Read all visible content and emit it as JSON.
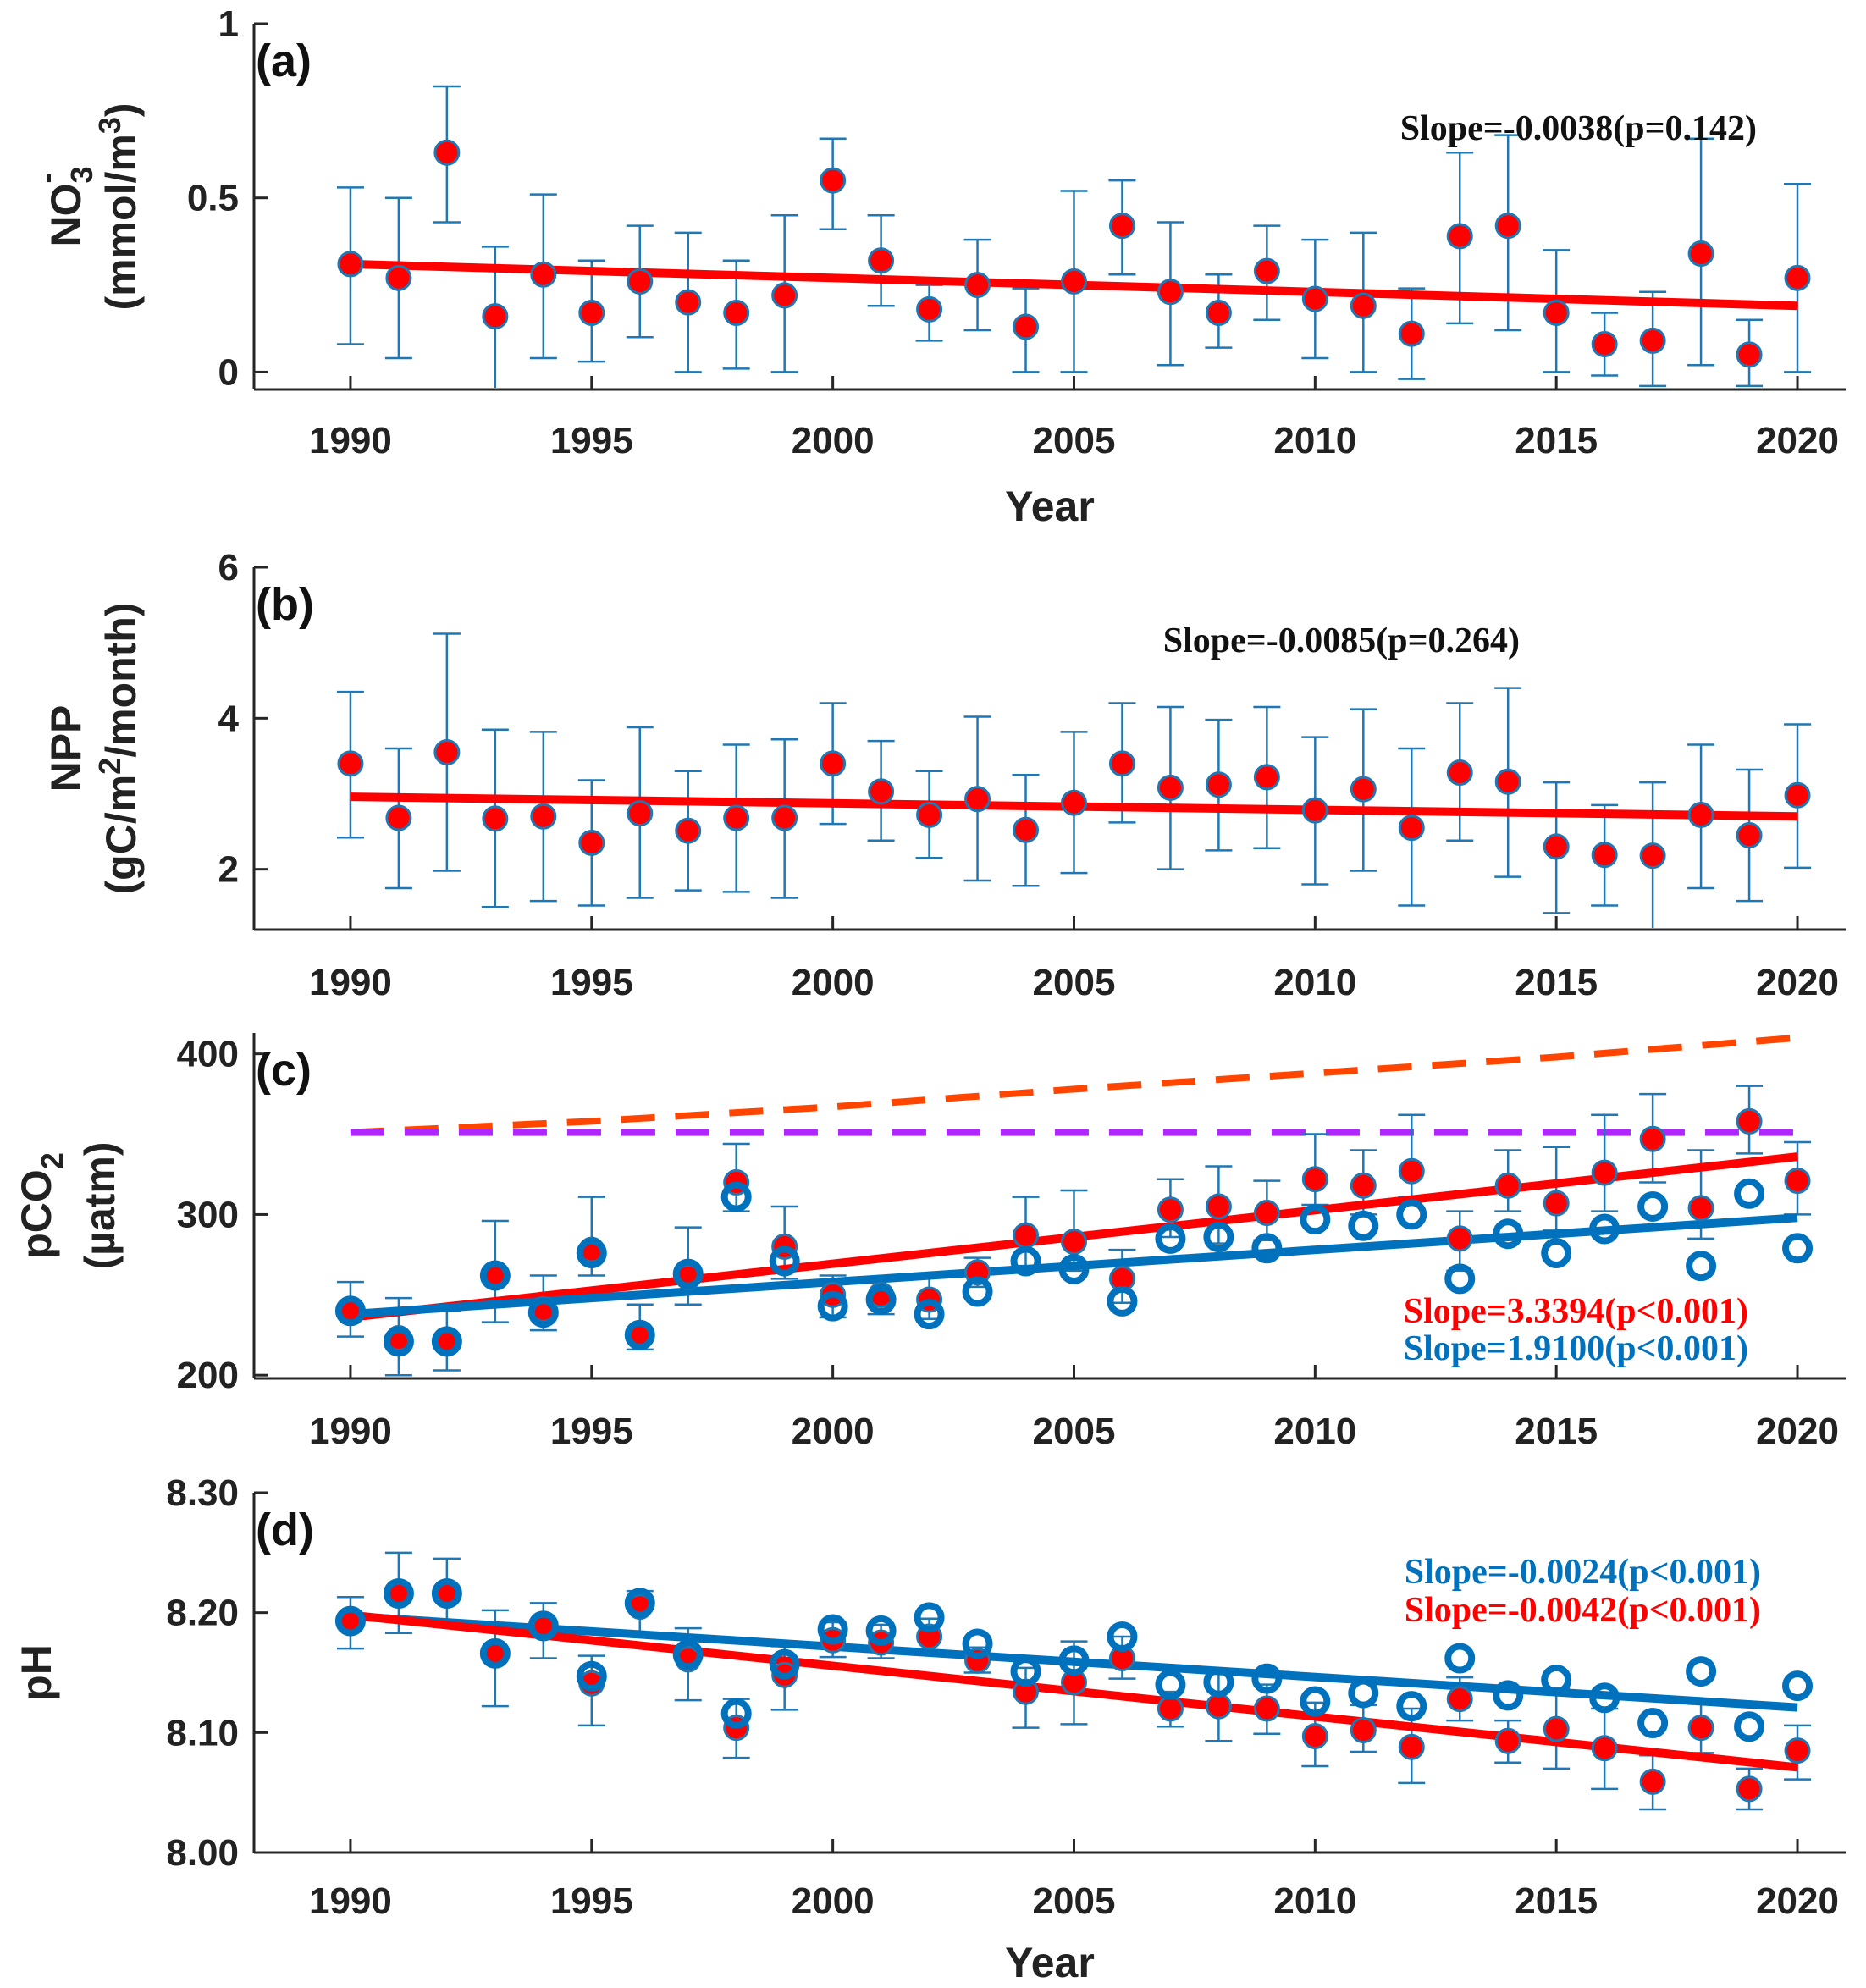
{
  "chart_data": [
    {
      "type": "scatter",
      "panel_label": "(a)",
      "ylabel_main": "NO",
      "ylabel_sub": "3",
      "ylabel_sup": "-",
      "ylabel_unit": "(mmol/m",
      "ylabel_unit_sup": "3",
      "ylabel_unit_end": ")",
      "xlabel": "Year",
      "xlim": [
        1988,
        2021
      ],
      "ylim": [
        -0.05,
        1.0
      ],
      "xticks": [
        "1990",
        "1995",
        "2000",
        "2005",
        "2010",
        "2015",
        "2020"
      ],
      "yticks": [
        "0",
        "0.5",
        "1"
      ],
      "ytick_values": [
        0,
        0.5,
        1
      ],
      "years": [
        1990,
        1991,
        1992,
        1993,
        1994,
        1995,
        1996,
        1997,
        1998,
        1999,
        2000,
        2001,
        2002,
        2003,
        2004,
        2005,
        2006,
        2007,
        2008,
        2009,
        2010,
        2011,
        2012,
        2013,
        2014,
        2015,
        2016,
        2017,
        2018,
        2019,
        2020
      ],
      "series": [
        {
          "name": "observed",
          "marker": "filled",
          "values": [
            0.31,
            0.27,
            0.63,
            0.16,
            0.28,
            0.17,
            0.26,
            0.2,
            0.17,
            0.22,
            0.55,
            0.32,
            0.18,
            0.25,
            0.13,
            0.26,
            0.42,
            0.23,
            0.17,
            0.29,
            0.21,
            0.19,
            0.11,
            0.39,
            0.42,
            0.17,
            0.08,
            0.09,
            0.34,
            0.05,
            0.27
          ],
          "err_low": [
            0.08,
            0.04,
            0.43,
            -0.05,
            0.04,
            0.03,
            0.1,
            0.0,
            0.01,
            0.0,
            0.41,
            0.19,
            0.09,
            0.12,
            0.0,
            0.0,
            0.28,
            0.02,
            0.07,
            0.15,
            0.04,
            0.0,
            -0.02,
            0.14,
            0.12,
            0.0,
            -0.01,
            -0.04,
            0.02,
            -0.04,
            0.0
          ],
          "err_high": [
            0.53,
            0.5,
            0.82,
            0.36,
            0.51,
            0.32,
            0.42,
            0.4,
            0.32,
            0.45,
            0.67,
            0.45,
            0.25,
            0.38,
            0.24,
            0.52,
            0.55,
            0.43,
            0.28,
            0.42,
            0.38,
            0.4,
            0.24,
            0.63,
            0.68,
            0.35,
            0.17,
            0.23,
            0.67,
            0.15,
            0.54
          ]
        }
      ],
      "trend_lines": [
        {
          "name": "trend",
          "color": "#ff0000",
          "style": "solid",
          "x": [
            1990,
            2020
          ],
          "y": [
            0.31,
            0.19
          ]
        }
      ],
      "annotations": [
        {
          "text": "Slope=-0.0038(p=0.142)",
          "color": "#111111"
        }
      ]
    },
    {
      "type": "scatter",
      "panel_label": "(b)",
      "ylabel_main": "NPP",
      "ylabel_unit": "(gC/m",
      "ylabel_unit_sup": "2",
      "ylabel_unit_end": "/month)",
      "xlabel": "",
      "xlim": [
        1988,
        2021
      ],
      "ylim": [
        1.2,
        6.0
      ],
      "xticks": [
        "1990",
        "1995",
        "2000",
        "2005",
        "2010",
        "2015",
        "2020"
      ],
      "yticks": [
        "2",
        "4",
        "6"
      ],
      "ytick_values": [
        2,
        4,
        6
      ],
      "years": [
        1990,
        1991,
        1992,
        1993,
        1994,
        1995,
        1996,
        1997,
        1998,
        1999,
        2000,
        2001,
        2002,
        2003,
        2004,
        2005,
        2006,
        2007,
        2008,
        2009,
        2010,
        2011,
        2012,
        2013,
        2014,
        2015,
        2016,
        2017,
        2018,
        2019,
        2020
      ],
      "series": [
        {
          "name": "observed",
          "marker": "filled",
          "values": [
            3.4,
            2.68,
            3.55,
            2.67,
            2.7,
            2.35,
            2.74,
            2.51,
            2.68,
            2.68,
            3.4,
            3.03,
            2.72,
            2.93,
            2.52,
            2.88,
            3.4,
            3.08,
            3.12,
            3.22,
            2.78,
            3.06,
            2.55,
            3.28,
            3.16,
            2.3,
            2.19,
            2.18,
            2.72,
            2.45,
            2.98
          ],
          "err_low": [
            2.42,
            1.75,
            1.98,
            1.5,
            1.58,
            1.52,
            1.62,
            1.72,
            1.7,
            1.62,
            2.6,
            2.38,
            2.15,
            1.85,
            1.78,
            1.95,
            2.62,
            2.0,
            2.25,
            2.28,
            1.8,
            1.98,
            1.52,
            2.38,
            1.9,
            1.42,
            1.52,
            1.2,
            1.75,
            1.58,
            2.02
          ],
          "err_high": [
            4.35,
            3.6,
            5.12,
            3.85,
            3.82,
            3.18,
            3.88,
            3.3,
            3.65,
            3.72,
            4.2,
            3.7,
            3.3,
            4.02,
            3.25,
            3.82,
            4.2,
            4.15,
            3.98,
            4.15,
            3.75,
            4.12,
            3.6,
            4.2,
            4.4,
            3.15,
            2.85,
            3.15,
            3.65,
            3.32,
            3.92
          ]
        }
      ],
      "trend_lines": [
        {
          "name": "trend",
          "color": "#ff0000",
          "style": "solid",
          "x": [
            1990,
            2020
          ],
          "y": [
            2.96,
            2.7
          ]
        }
      ],
      "annotations": [
        {
          "text": "Slope=-0.0085(p=0.264)",
          "color": "#111111"
        }
      ]
    },
    {
      "type": "scatter",
      "panel_label": "(c)",
      "ylabel_main": "pCO",
      "ylabel_sub": "2",
      "ylabel_unit": "(µatm)",
      "xlabel": "",
      "xlim": [
        1988,
        2021
      ],
      "ylim": [
        198,
        413
      ],
      "xticks": [
        "1990",
        "1995",
        "2000",
        "2005",
        "2010",
        "2015",
        "2020"
      ],
      "yticks": [
        "200",
        "300",
        "400"
      ],
      "ytick_values": [
        200,
        300,
        400
      ],
      "years": [
        1990,
        1991,
        1992,
        1993,
        1994,
        1995,
        1996,
        1997,
        1998,
        1999,
        2000,
        2001,
        2002,
        2003,
        2004,
        2005,
        2006,
        2007,
        2008,
        2009,
        2010,
        2011,
        2012,
        2013,
        2014,
        2015,
        2016,
        2017,
        2018,
        2019,
        2020
      ],
      "series": [
        {
          "name": "red",
          "marker": "filled",
          "color": "#ff0000",
          "values": [
            241,
            223,
            222,
            262,
            241,
            278,
            226,
            261,
            320,
            280,
            250,
            250,
            247,
            264,
            287,
            283,
            260,
            303,
            305,
            301,
            322,
            318,
            327,
            285,
            318,
            307,
            326,
            347,
            304,
            358,
            321
          ],
          "err_low": [
            224,
            200,
            203,
            233,
            228,
            262,
            216,
            244,
            302,
            260,
            236,
            238,
            235,
            255,
            268,
            265,
            245,
            286,
            282,
            284,
            306,
            300,
            311,
            265,
            302,
            290,
            302,
            320,
            285,
            338,
            300
          ],
          "err_high": [
            258,
            248,
            240,
            296,
            262,
            311,
            244,
            292,
            344,
            305,
            262,
            260,
            262,
            273,
            311,
            315,
            278,
            322,
            330,
            321,
            350,
            340,
            362,
            302,
            340,
            342,
            362,
            375,
            340,
            380,
            345
          ]
        },
        {
          "name": "blue",
          "marker": "open",
          "color": "#0072bd",
          "values": [
            240,
            221,
            221,
            262,
            239,
            276,
            225,
            263,
            311,
            271,
            243,
            247,
            238,
            252,
            271,
            266,
            246,
            285,
            286,
            279,
            297,
            293,
            300,
            260,
            288,
            276,
            291,
            305,
            268,
            313,
            279
          ]
        }
      ],
      "trend_lines": [
        {
          "name": "red trend",
          "color": "#ff0000",
          "style": "solid",
          "x": [
            1990,
            2020
          ],
          "y": [
            236,
            336
          ]
        },
        {
          "name": "blue trend",
          "color": "#0072bd",
          "style": "solid",
          "x": [
            1990,
            2020
          ],
          "y": [
            238,
            298
          ]
        },
        {
          "name": "atmospheric",
          "color": "#ff4500",
          "style": "dashed",
          "x": [
            1990,
            1995,
            2000,
            2005,
            2010,
            2015,
            2020
          ],
          "y": [
            351,
            358,
            367,
            378,
            388,
            398,
            410
          ]
        },
        {
          "name": "threshold",
          "color": "#b026ff",
          "style": "dashed",
          "x": [
            1990,
            2020
          ],
          "y": [
            351,
            351
          ]
        }
      ],
      "annotations": [
        {
          "text": "Slope=3.3394(p<0.001)",
          "color": "#ff0000"
        },
        {
          "text": "Slope=1.9100(p<0.001)",
          "color": "#0072bd"
        }
      ]
    },
    {
      "type": "scatter",
      "panel_label": "(d)",
      "ylabel_main": "pH",
      "ylabel_unit": "",
      "xlabel": "Year",
      "xlim": [
        1988,
        2021
      ],
      "ylim": [
        8.0,
        8.3
      ],
      "xticks": [
        "1990",
        "1995",
        "2000",
        "2005",
        "2010",
        "2015",
        "2020"
      ],
      "yticks": [
        "8.00",
        "8.10",
        "8.20",
        "8.30"
      ],
      "ytick_values": [
        8.0,
        8.1,
        8.2,
        8.3
      ],
      "years": [
        1990,
        1991,
        1992,
        1993,
        1994,
        1995,
        1996,
        1997,
        1998,
        1999,
        2000,
        2001,
        2002,
        2003,
        2004,
        2005,
        2006,
        2007,
        2008,
        2009,
        2010,
        2011,
        2012,
        2013,
        2014,
        2015,
        2016,
        2017,
        2018,
        2019,
        2020
      ],
      "series": [
        {
          "name": "red",
          "marker": "filled",
          "color": "#ff0000",
          "values": [
            8.192,
            8.215,
            8.215,
            8.165,
            8.187,
            8.141,
            8.205,
            8.161,
            8.104,
            8.148,
            8.177,
            8.175,
            8.18,
            8.16,
            8.134,
            8.142,
            8.162,
            8.12,
            8.122,
            8.12,
            8.097,
            8.102,
            8.088,
            8.128,
            8.093,
            8.103,
            8.087,
            8.059,
            8.104,
            8.053,
            8.085
          ],
          "err_low": [
            8.17,
            8.183,
            8.188,
            8.122,
            8.162,
            8.106,
            8.182,
            8.127,
            8.079,
            8.119,
            8.163,
            8.162,
            8.165,
            8.15,
            8.104,
            8.107,
            8.145,
            8.105,
            8.093,
            8.099,
            8.072,
            8.084,
            8.058,
            8.11,
            8.075,
            8.07,
            8.053,
            8.036,
            8.083,
            8.036,
            8.061
          ],
          "err_high": [
            8.213,
            8.25,
            8.245,
            8.202,
            8.208,
            8.164,
            8.218,
            8.187,
            8.128,
            8.172,
            8.192,
            8.19,
            8.195,
            8.171,
            8.154,
            8.176,
            8.18,
            8.134,
            8.152,
            8.14,
            8.125,
            8.123,
            8.12,
            8.146,
            8.11,
            8.137,
            8.12,
            8.081,
            8.124,
            8.07,
            8.106
          ]
        },
        {
          "name": "blue",
          "marker": "open",
          "color": "#0072bd",
          "values": [
            8.193,
            8.216,
            8.216,
            8.166,
            8.189,
            8.147,
            8.208,
            8.165,
            8.116,
            8.157,
            8.186,
            8.185,
            8.196,
            8.174,
            8.151,
            8.16,
            8.18,
            8.14,
            8.142,
            8.145,
            8.126,
            8.133,
            8.122,
            8.162,
            8.131,
            8.144,
            8.129,
            8.108,
            8.151,
            8.105,
            8.139
          ]
        }
      ],
      "trend_lines": [
        {
          "name": "blue trend",
          "color": "#0072bd",
          "style": "solid",
          "x": [
            1990,
            2020
          ],
          "y": [
            8.197,
            8.121
          ]
        },
        {
          "name": "red trend",
          "color": "#ff0000",
          "style": "solid",
          "x": [
            1990,
            2020
          ],
          "y": [
            8.198,
            8.071
          ]
        }
      ],
      "annotations": [
        {
          "text": "Slope=-0.0024(p<0.001)",
          "color": "#0072bd"
        },
        {
          "text": "Slope=-0.0042(p<0.001)",
          "color": "#ff0000"
        }
      ]
    }
  ]
}
